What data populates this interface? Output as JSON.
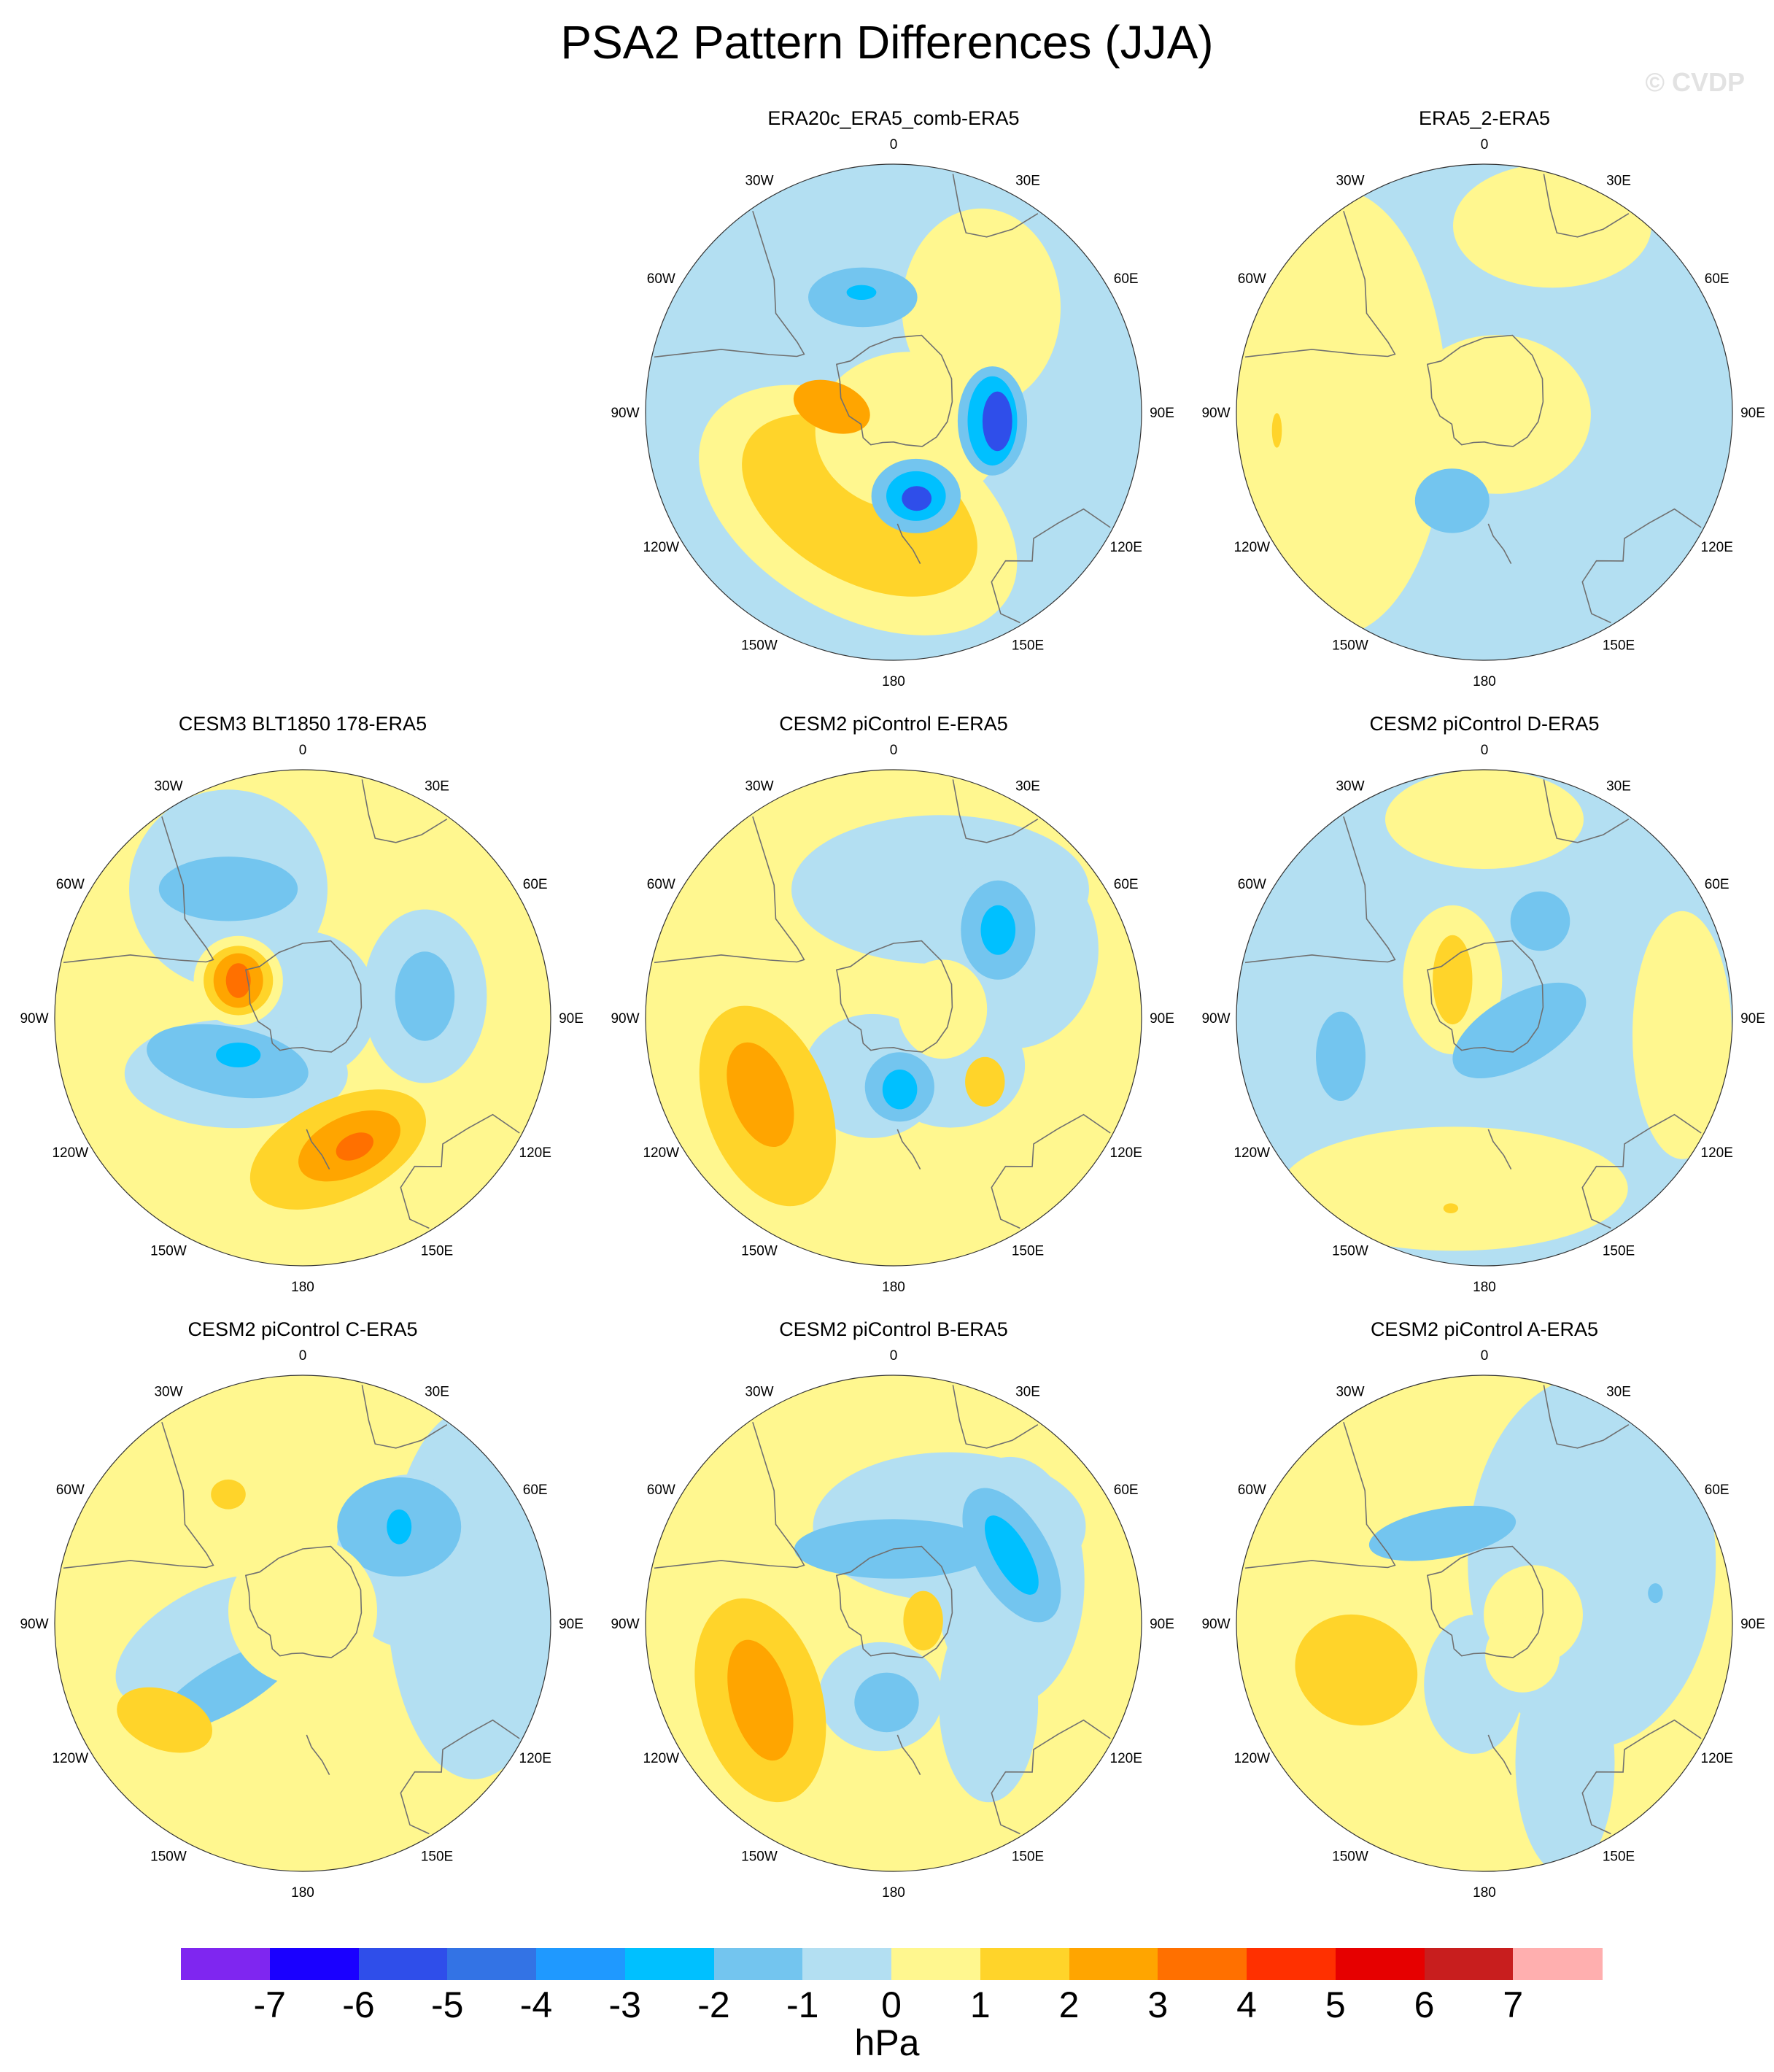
{
  "title": "PSA2 Pattern Differences (JJA)",
  "watermark": "© CVDP",
  "longitude_labels": [
    "0",
    "30E",
    "60E",
    "90E",
    "120E",
    "150E",
    "180",
    "150W",
    "120W",
    "90W",
    "60W",
    "30W"
  ],
  "panels": [
    {
      "id": "p1",
      "title": "ERA20c_ERA5_comb-ERA5",
      "base_color": "#b3dff2",
      "blobs": [
        {
          "lon": 200,
          "r": 0.42,
          "a": 0.7,
          "b": 0.42,
          "rot": 30,
          "color": "#fff78f"
        },
        {
          "lon": 200,
          "r": 0.4,
          "a": 0.52,
          "b": 0.3,
          "rot": 30,
          "color": "#ffd42a"
        },
        {
          "lon": 140,
          "r": 0.1,
          "a": 0.38,
          "b": 0.32,
          "rot": 0,
          "color": "#fff78f"
        },
        {
          "lon": 40,
          "r": 0.55,
          "a": 0.32,
          "b": 0.4,
          "rot": 0,
          "color": "#fff78f"
        },
        {
          "lon": 275,
          "r": 0.25,
          "a": 0.16,
          "b": 0.1,
          "rot": 20,
          "color": "#ffa500"
        },
        {
          "lon": 95,
          "r": 0.4,
          "a": 0.14,
          "b": 0.22,
          "rot": 0,
          "color": "#73c5ef"
        },
        {
          "lon": 95,
          "r": 0.4,
          "a": 0.1,
          "b": 0.18,
          "rot": 0,
          "color": "#00c0ff"
        },
        {
          "lon": 95,
          "r": 0.42,
          "a": 0.06,
          "b": 0.12,
          "rot": 0,
          "color": "#2f4eea"
        },
        {
          "lon": 165,
          "r": 0.35,
          "a": 0.18,
          "b": 0.15,
          "rot": 0,
          "color": "#73c5ef"
        },
        {
          "lon": 165,
          "r": 0.35,
          "a": 0.12,
          "b": 0.1,
          "rot": 0,
          "color": "#00c0ff"
        },
        {
          "lon": 165,
          "r": 0.36,
          "a": 0.06,
          "b": 0.05,
          "rot": 0,
          "color": "#2f4eea"
        },
        {
          "lon": 345,
          "r": 0.48,
          "a": 0.22,
          "b": 0.12,
          "rot": 0,
          "color": "#73c5ef"
        },
        {
          "lon": 345,
          "r": 0.5,
          "a": 0.06,
          "b": 0.03,
          "rot": 0,
          "color": "#00c0ff"
        }
      ]
    },
    {
      "id": "p2",
      "title": "ERA5_2-ERA5",
      "base_color": "#b3dff2",
      "blobs": [
        {
          "lon": 270,
          "r": 0.6,
          "a": 0.45,
          "b": 0.9,
          "rot": 0,
          "color": "#fff78f"
        },
        {
          "lon": 90,
          "r": 0.6,
          "a": 0.4,
          "b": 0.9,
          "rot": 0,
          "color": "#b3dff2"
        },
        {
          "lon": 20,
          "r": 0.8,
          "a": 0.4,
          "b": 0.25,
          "rot": 0,
          "color": "#fff78f"
        },
        {
          "lon": 100,
          "r": 0.05,
          "a": 0.38,
          "b": 0.32,
          "rot": 0,
          "color": "#fff78f"
        },
        {
          "lon": 200,
          "r": 0.38,
          "a": 0.15,
          "b": 0.13,
          "rot": 0,
          "color": "#73c5ef"
        },
        {
          "lon": 265,
          "r": 0.84,
          "a": 0.02,
          "b": 0.07,
          "rot": 0,
          "color": "#ffd42a"
        }
      ]
    },
    {
      "id": "p3",
      "title": "CESM3 BLT1850 178-ERA5",
      "base_color": "#fff78f",
      "blobs": [
        {
          "lon": 330,
          "r": 0.6,
          "a": 0.4,
          "b": 0.4,
          "rot": 0,
          "color": "#b3dff2"
        },
        {
          "lon": 330,
          "r": 0.6,
          "a": 0.28,
          "b": 0.13,
          "rot": 0,
          "color": "#73c5ef"
        },
        {
          "lon": 0,
          "r": 0.05,
          "a": 0.3,
          "b": 0.3,
          "rot": 0,
          "color": "#b3dff2"
        },
        {
          "lon": 230,
          "r": 0.35,
          "a": 0.45,
          "b": 0.22,
          "rot": 0,
          "color": "#b3dff2"
        },
        {
          "lon": 240,
          "r": 0.35,
          "a": 0.33,
          "b": 0.14,
          "rot": 10,
          "color": "#73c5ef"
        },
        {
          "lon": 240,
          "r": 0.3,
          "a": 0.09,
          "b": 0.05,
          "rot": 0,
          "color": "#00c0ff"
        },
        {
          "lon": 80,
          "r": 0.5,
          "a": 0.25,
          "b": 0.35,
          "rot": 0,
          "color": "#b3dff2"
        },
        {
          "lon": 80,
          "r": 0.5,
          "a": 0.12,
          "b": 0.18,
          "rot": 0,
          "color": "#73c5ef"
        },
        {
          "lon": 300,
          "r": 0.3,
          "a": 0.18,
          "b": 0.18,
          "rot": 0,
          "color": "#fff78f"
        },
        {
          "lon": 300,
          "r": 0.3,
          "a": 0.14,
          "b": 0.14,
          "rot": 0,
          "color": "#ffd42a"
        },
        {
          "lon": 300,
          "r": 0.3,
          "a": 0.1,
          "b": 0.11,
          "rot": 0,
          "color": "#ffa500"
        },
        {
          "lon": 300,
          "r": 0.3,
          "a": 0.05,
          "b": 0.07,
          "rot": 0,
          "color": "#ff7000"
        },
        {
          "lon": 165,
          "r": 0.55,
          "a": 0.38,
          "b": 0.2,
          "rot": -25,
          "color": "#ffd42a"
        },
        {
          "lon": 160,
          "r": 0.55,
          "a": 0.22,
          "b": 0.12,
          "rot": -25,
          "color": "#ffa500"
        },
        {
          "lon": 158,
          "r": 0.56,
          "a": 0.08,
          "b": 0.05,
          "rot": -25,
          "color": "#ff7000"
        }
      ]
    },
    {
      "id": "p4",
      "title": "CESM2 piControl E-ERA5",
      "base_color": "#fff78f",
      "blobs": [
        {
          "lon": 20,
          "r": 0.55,
          "a": 0.6,
          "b": 0.3,
          "rot": 0,
          "color": "#b3dff2"
        },
        {
          "lon": 60,
          "r": 0.55,
          "a": 0.35,
          "b": 0.4,
          "rot": 0,
          "color": "#b3dff2"
        },
        {
          "lon": 130,
          "r": 0.3,
          "a": 0.3,
          "b": 0.25,
          "rot": 0,
          "color": "#b3dff2"
        },
        {
          "lon": 200,
          "r": 0.25,
          "a": 0.28,
          "b": 0.25,
          "rot": 0,
          "color": "#b3dff2"
        },
        {
          "lon": 80,
          "r": 0.2,
          "a": 0.18,
          "b": 0.2,
          "rot": 0,
          "color": "#fff78f"
        },
        {
          "lon": 50,
          "r": 0.55,
          "a": 0.15,
          "b": 0.2,
          "rot": 0,
          "color": "#73c5ef"
        },
        {
          "lon": 50,
          "r": 0.55,
          "a": 0.07,
          "b": 0.1,
          "rot": 0,
          "color": "#00c0ff"
        },
        {
          "lon": 175,
          "r": 0.28,
          "a": 0.14,
          "b": 0.14,
          "rot": 0,
          "color": "#73c5ef"
        },
        {
          "lon": 175,
          "r": 0.29,
          "a": 0.07,
          "b": 0.08,
          "rot": 0,
          "color": "#00c0ff"
        },
        {
          "lon": 235,
          "r": 0.62,
          "a": 0.25,
          "b": 0.42,
          "rot": -20,
          "color": "#ffd42a"
        },
        {
          "lon": 240,
          "r": 0.62,
          "a": 0.12,
          "b": 0.22,
          "rot": -20,
          "color": "#ffa500"
        },
        {
          "lon": 125,
          "r": 0.45,
          "a": 0.08,
          "b": 0.1,
          "rot": 0,
          "color": "#ffd42a"
        }
      ]
    },
    {
      "id": "p5",
      "title": "CESM2 piControl D-ERA5",
      "base_color": "#b3dff2",
      "blobs": [
        {
          "lon": 190,
          "r": 0.7,
          "a": 0.7,
          "b": 0.25,
          "rot": 0,
          "color": "#fff78f"
        },
        {
          "lon": 95,
          "r": 0.8,
          "a": 0.2,
          "b": 0.5,
          "rot": 0,
          "color": "#fff78f"
        },
        {
          "lon": 0,
          "r": 0.8,
          "a": 0.4,
          "b": 0.2,
          "rot": 0,
          "color": "#fff78f"
        },
        {
          "lon": 320,
          "r": 0.2,
          "a": 0.2,
          "b": 0.3,
          "rot": 0,
          "color": "#fff78f"
        },
        {
          "lon": 320,
          "r": 0.2,
          "a": 0.08,
          "b": 0.18,
          "rot": 0,
          "color": "#ffd42a"
        },
        {
          "lon": 110,
          "r": 0.15,
          "a": 0.3,
          "b": 0.14,
          "rot": -30,
          "color": "#73c5ef"
        },
        {
          "lon": 30,
          "r": 0.45,
          "a": 0.12,
          "b": 0.12,
          "rot": 0,
          "color": "#73c5ef"
        },
        {
          "lon": 255,
          "r": 0.6,
          "a": 0.1,
          "b": 0.18,
          "rot": 0,
          "color": "#73c5ef"
        },
        {
          "lon": 190,
          "r": 0.78,
          "a": 0.03,
          "b": 0.02,
          "rot": 0,
          "color": "#ffd42a"
        }
      ]
    },
    {
      "id": "p6",
      "title": "CESM2 piControl C-ERA5",
      "base_color": "#fff78f",
      "blobs": [
        {
          "lon": 80,
          "r": 0.7,
          "a": 0.35,
          "b": 0.75,
          "rot": 0,
          "color": "#b3dff2"
        },
        {
          "lon": 260,
          "r": 0.4,
          "a": 0.4,
          "b": 0.2,
          "rot": -30,
          "color": "#b3dff2"
        },
        {
          "lon": 60,
          "r": 0.5,
          "a": 0.3,
          "b": 0.35,
          "rot": 0,
          "color": "#b3dff2"
        },
        {
          "lon": 45,
          "r": 0.55,
          "a": 0.25,
          "b": 0.2,
          "rot": 0,
          "color": "#73c5ef"
        },
        {
          "lon": 45,
          "r": 0.55,
          "a": 0.05,
          "b": 0.07,
          "rot": 0,
          "color": "#00c0ff"
        },
        {
          "lon": 230,
          "r": 0.4,
          "a": 0.32,
          "b": 0.1,
          "rot": -30,
          "color": "#73c5ef"
        },
        {
          "lon": 0,
          "r": 0.05,
          "a": 0.3,
          "b": 0.3,
          "rot": 0,
          "color": "#fff78f"
        },
        {
          "lon": 235,
          "r": 0.68,
          "a": 0.2,
          "b": 0.12,
          "rot": 20,
          "color": "#ffd42a"
        },
        {
          "lon": 330,
          "r": 0.6,
          "a": 0.07,
          "b": 0.06,
          "rot": 0,
          "color": "#ffd42a"
        }
      ]
    },
    {
      "id": "p7",
      "title": "CESM2 piControl B-ERA5",
      "base_color": "#fff78f",
      "blobs": [
        {
          "lon": 30,
          "r": 0.45,
          "a": 0.55,
          "b": 0.3,
          "rot": 0,
          "color": "#b3dff2"
        },
        {
          "lon": 70,
          "r": 0.5,
          "a": 0.3,
          "b": 0.5,
          "rot": 0,
          "color": "#b3dff2"
        },
        {
          "lon": 130,
          "r": 0.5,
          "a": 0.2,
          "b": 0.4,
          "rot": 0,
          "color": "#b3dff2"
        },
        {
          "lon": 190,
          "r": 0.3,
          "a": 0.25,
          "b": 0.22,
          "rot": 0,
          "color": "#b3dff2"
        },
        {
          "lon": 0,
          "r": 0.3,
          "a": 0.4,
          "b": 0.12,
          "rot": 0,
          "color": "#73c5ef"
        },
        {
          "lon": 60,
          "r": 0.55,
          "a": 0.15,
          "b": 0.3,
          "rot": -30,
          "color": "#73c5ef"
        },
        {
          "lon": 60,
          "r": 0.55,
          "a": 0.07,
          "b": 0.18,
          "rot": -30,
          "color": "#00c0ff"
        },
        {
          "lon": 185,
          "r": 0.32,
          "a": 0.13,
          "b": 0.12,
          "rot": 0,
          "color": "#73c5ef"
        },
        {
          "lon": 240,
          "r": 0.62,
          "a": 0.25,
          "b": 0.42,
          "rot": -15,
          "color": "#ffd42a"
        },
        {
          "lon": 240,
          "r": 0.62,
          "a": 0.12,
          "b": 0.25,
          "rot": -15,
          "color": "#ffa500"
        },
        {
          "lon": 85,
          "r": 0.12,
          "a": 0.08,
          "b": 0.12,
          "rot": 0,
          "color": "#ffd42a"
        }
      ]
    },
    {
      "id": "p8",
      "title": "CESM2 piControl A-ERA5",
      "base_color": "#fff78f",
      "blobs": [
        {
          "lon": 60,
          "r": 0.5,
          "a": 0.5,
          "b": 0.75,
          "rot": 0,
          "color": "#b3dff2"
        },
        {
          "lon": 150,
          "r": 0.65,
          "a": 0.2,
          "b": 0.45,
          "rot": 0,
          "color": "#b3dff2"
        },
        {
          "lon": 190,
          "r": 0.25,
          "a": 0.2,
          "b": 0.28,
          "rot": 0,
          "color": "#b3dff2"
        },
        {
          "lon": 335,
          "r": 0.4,
          "a": 0.3,
          "b": 0.1,
          "rot": -10,
          "color": "#73c5ef"
        },
        {
          "lon": 80,
          "r": 0.2,
          "a": 0.2,
          "b": 0.2,
          "rot": 0,
          "color": "#fff78f"
        },
        {
          "lon": 130,
          "r": 0.2,
          "a": 0.15,
          "b": 0.15,
          "rot": 0,
          "color": "#fff78f"
        },
        {
          "lon": 250,
          "r": 0.55,
          "a": 0.25,
          "b": 0.22,
          "rot": 20,
          "color": "#ffd42a"
        },
        {
          "lon": 80,
          "r": 0.7,
          "a": 0.03,
          "b": 0.04,
          "rot": 0,
          "color": "#73c5ef"
        }
      ]
    }
  ],
  "colorbar": {
    "colors": [
      "#7f26f0",
      "#1a00ff",
      "#2f4eea",
      "#3373e5",
      "#1f99ff",
      "#00c0ff",
      "#73c5ef",
      "#b3dff2",
      "#fff78f",
      "#ffd42a",
      "#ffa500",
      "#ff7000",
      "#ff3000",
      "#e60000",
      "#c81e1e",
      "#ffafaf"
    ],
    "ticks": [
      "-7",
      "-6",
      "-5",
      "-4",
      "-3",
      "-2",
      "-1",
      "0",
      "1",
      "2",
      "3",
      "4",
      "5",
      "6",
      "7"
    ],
    "units": "hPa"
  }
}
